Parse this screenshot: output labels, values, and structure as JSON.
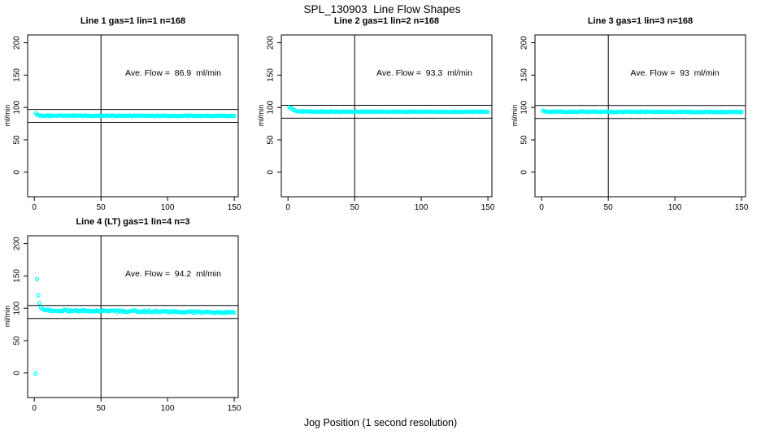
{
  "page": {
    "title": "SPL_130903  Line Flow Shapes",
    "xlabel": "Jog Position (1 second resolution)",
    "background_color": "#ffffff",
    "axis_color": "#000000",
    "point_color": "#00ffff"
  },
  "chart_data": [
    {
      "type": "scatter",
      "title": "Line 1 gas=1 lin=1 n=168",
      "annotation": "Ave. Flow =  86.9  ml/min",
      "ave_flow_ml_min": 86.9,
      "gas": 1,
      "lin": 1,
      "n": 168,
      "ylabel": "ml/min",
      "xlim": [
        -5,
        153
      ],
      "ylim": [
        -38,
        212
      ],
      "x_ticks": [
        0,
        50,
        100,
        150
      ],
      "y_ticks": [
        0,
        50,
        100,
        150,
        200
      ],
      "vline_x": 50,
      "hlines": [
        76.9,
        96.9
      ],
      "points_transient": [
        [
          1,
          91
        ],
        [
          2,
          89
        ],
        [
          3,
          88
        ]
      ],
      "points_steady": {
        "x_from": 4,
        "x_to": 150,
        "y_start": 87.3,
        "y_end": 86.9,
        "noise": 0.5
      }
    },
    {
      "type": "scatter",
      "title": "Line 2 gas=1 lin=2 n=168",
      "annotation": "Ave. Flow =  93.3  ml/min",
      "ave_flow_ml_min": 93.3,
      "gas": 1,
      "lin": 2,
      "n": 168,
      "ylabel": "ml/min",
      "xlim": [
        -5,
        153
      ],
      "ylim": [
        -38,
        212
      ],
      "x_ticks": [
        0,
        50,
        100,
        150
      ],
      "y_ticks": [
        0,
        50,
        100,
        150,
        200
      ],
      "vline_x": 50,
      "hlines": [
        83.3,
        103.3
      ],
      "points_transient": [
        [
          1,
          100.5
        ],
        [
          2,
          99.5
        ],
        [
          3,
          98
        ],
        [
          4,
          96.5
        ],
        [
          5,
          95.5
        ],
        [
          6,
          94.7
        ],
        [
          7,
          94.1
        ]
      ],
      "points_steady": {
        "x_from": 8,
        "x_to": 150,
        "y_start": 93.6,
        "y_end": 93.2,
        "noise": 0.5
      }
    },
    {
      "type": "scatter",
      "title": "Line 3 gas=1 lin=3 n=168",
      "annotation": "Ave. Flow =  93  ml/min",
      "ave_flow_ml_min": 93,
      "gas": 1,
      "lin": 3,
      "n": 168,
      "ylabel": "ml/min",
      "xlim": [
        -5,
        153
      ],
      "ylim": [
        -38,
        212
      ],
      "x_ticks": [
        0,
        50,
        100,
        150
      ],
      "y_ticks": [
        0,
        50,
        100,
        150,
        200
      ],
      "vline_x": 50,
      "hlines": [
        83,
        103
      ],
      "points_transient": [
        [
          1,
          95
        ],
        [
          2,
          94
        ]
      ],
      "points_steady": {
        "x_from": 3,
        "x_to": 150,
        "y_start": 93.4,
        "y_end": 93.0,
        "noise": 0.55
      }
    },
    {
      "type": "scatter",
      "title": "Line 4 (LT) gas=1 lin=4 n=3",
      "annotation": "Ave. Flow =  94.2  ml/min",
      "ave_flow_ml_min": 94.2,
      "gas": 1,
      "lin": 4,
      "n": 3,
      "ylabel": "ml/min",
      "xlim": [
        -5,
        153
      ],
      "ylim": [
        -38,
        212
      ],
      "x_ticks": [
        0,
        50,
        100,
        150
      ],
      "y_ticks": [
        0,
        50,
        100,
        150,
        200
      ],
      "vline_x": 50,
      "hlines": [
        84.2,
        104.2
      ],
      "points_transient": [
        [
          1,
          -1
        ],
        [
          2,
          145
        ],
        [
          3,
          120
        ],
        [
          4,
          108
        ],
        [
          5,
          101
        ],
        [
          6,
          99
        ],
        [
          7,
          98
        ]
      ],
      "points_steady": {
        "x_from": 8,
        "x_to": 150,
        "y_start": 96.8,
        "y_end": 93.6,
        "noise": 1.3
      }
    }
  ]
}
